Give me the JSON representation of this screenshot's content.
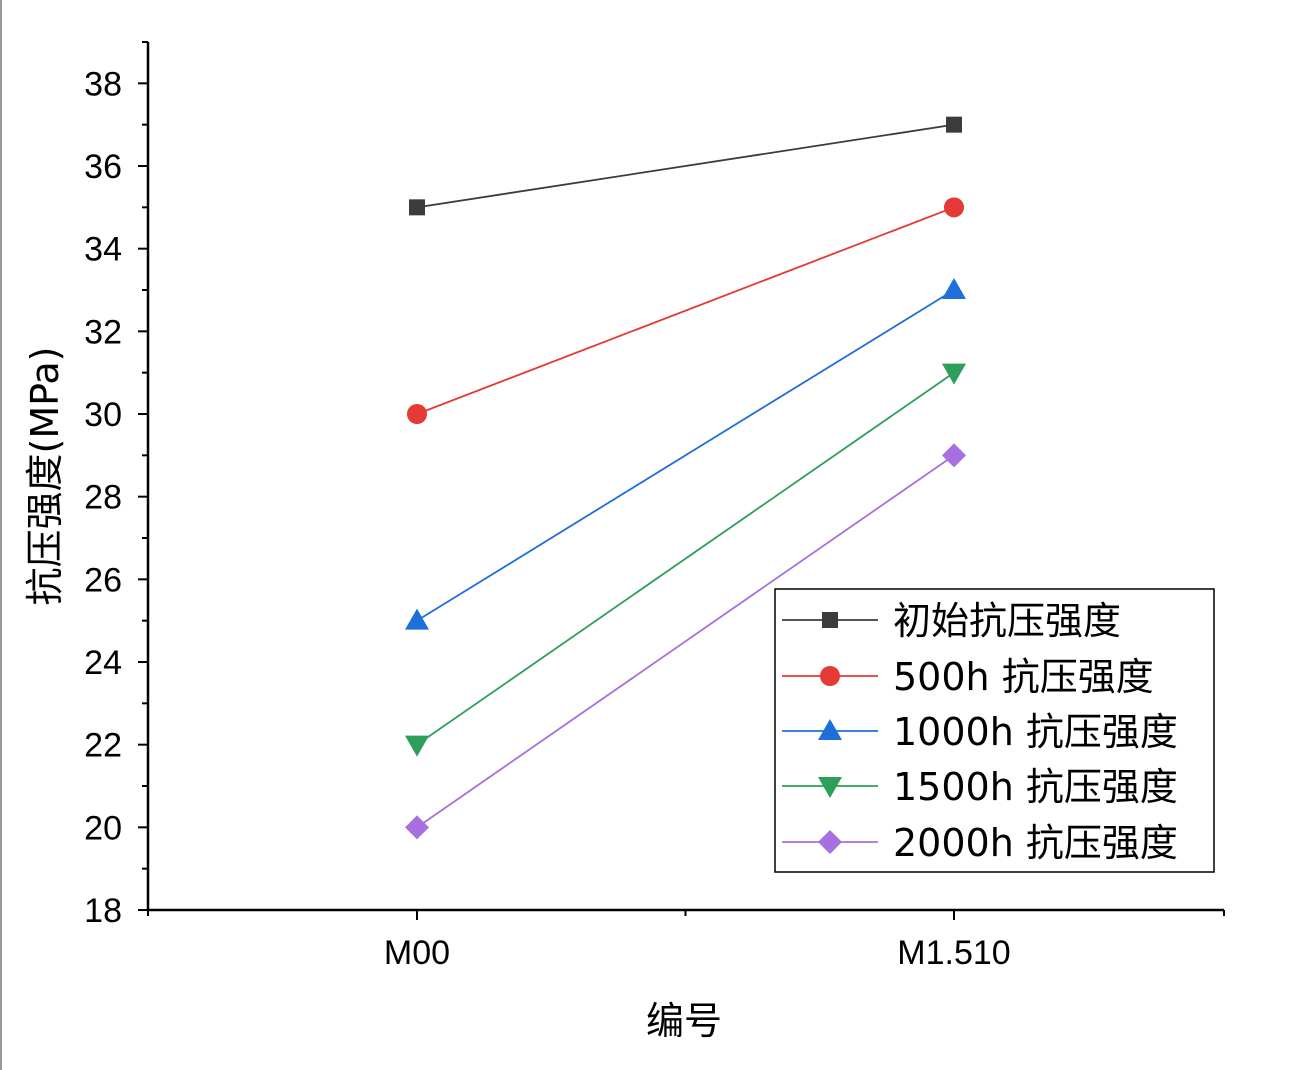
{
  "chart_data": {
    "type": "line",
    "title": "",
    "xlabel": "编号",
    "ylabel": "抗压强度(MPa)",
    "categories": [
      "M00",
      "M1.510"
    ],
    "ylim": [
      18,
      39
    ],
    "yticks": [
      18,
      20,
      22,
      24,
      26,
      28,
      30,
      32,
      34,
      36,
      38
    ],
    "grid": false,
    "legend_position": "bottom-right",
    "series": [
      {
        "name": "初始抗压强度",
        "values": [
          35,
          37
        ],
        "color": "#3b3b3b",
        "marker": "square"
      },
      {
        "name": "500h 抗压强度",
        "values": [
          30,
          35
        ],
        "color": "#e53935",
        "marker": "circle"
      },
      {
        "name": "1000h 抗压强度",
        "values": [
          25,
          33
        ],
        "color": "#1e6fd9",
        "marker": "triangle-up"
      },
      {
        "name": "1500h 抗压强度",
        "values": [
          22,
          31
        ],
        "color": "#2e9e5b",
        "marker": "triangle-down"
      },
      {
        "name": "2000h 抗压强度",
        "values": [
          20,
          29
        ],
        "color": "#a86fe0",
        "marker": "diamond"
      }
    ]
  }
}
